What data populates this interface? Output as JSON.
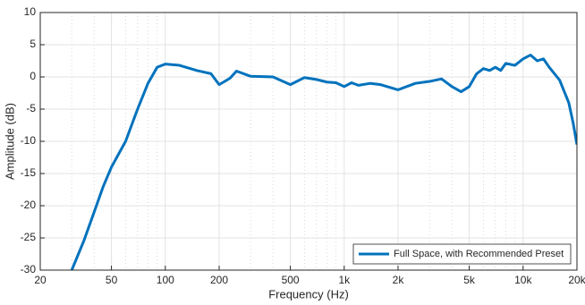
{
  "chart_data": {
    "type": "line",
    "x_label": "Frequency (Hz)",
    "y_label": "Amplitude (dB)",
    "x_scale": "log",
    "grid": true,
    "minor_grid": true,
    "legend": "lower right",
    "xlim": [
      20,
      20000
    ],
    "ylim": [
      -30,
      10
    ],
    "xticks": [
      20,
      50,
      100,
      200,
      500,
      {
        "value": 1000,
        "label": "1k"
      },
      {
        "value": 2000,
        "label": "2k"
      },
      {
        "value": 5000,
        "label": "5k"
      },
      {
        "value": 10000,
        "label": "10k"
      },
      {
        "value": 20000,
        "label": "20k"
      }
    ],
    "yticks": [
      10,
      5,
      0,
      -5,
      -10,
      -15,
      -20,
      -25,
      -30
    ],
    "x": [
      30,
      35,
      40,
      45,
      50,
      60,
      70,
      80,
      90,
      100,
      120,
      150,
      180,
      200,
      230,
      250,
      300,
      400,
      500,
      600,
      700,
      800,
      900,
      1000,
      1100,
      1200,
      1400,
      1600,
      2000,
      2500,
      3000,
      3500,
      4000,
      4500,
      5000,
      5500,
      6000,
      6500,
      7000,
      7500,
      8000,
      9000,
      10000,
      11000,
      12000,
      13000,
      14000,
      16000,
      18000,
      19000,
      20000
    ],
    "series": [
      {
        "name": "Full Space, with Recommended Preset",
        "color": "#0072BD",
        "values": [
          -30,
          -25.5,
          -21,
          -17,
          -14,
          -10,
          -5,
          -1,
          1.5,
          2,
          1.8,
          1,
          0.5,
          -1.2,
          -0.2,
          0.9,
          0.1,
          0,
          -1.2,
          -0.1,
          -0.4,
          -0.8,
          -0.9,
          -1.5,
          -0.9,
          -1.3,
          -1,
          -1.2,
          -2,
          -1,
          -0.7,
          -0.3,
          -1.5,
          -2.3,
          -1.5,
          0.5,
          1.3,
          1,
          1.5,
          1,
          2.1,
          1.8,
          2.8,
          3.4,
          2.5,
          2.8,
          1.5,
          -0.5,
          -4,
          -7,
          -10.5
        ]
      }
    ]
  }
}
